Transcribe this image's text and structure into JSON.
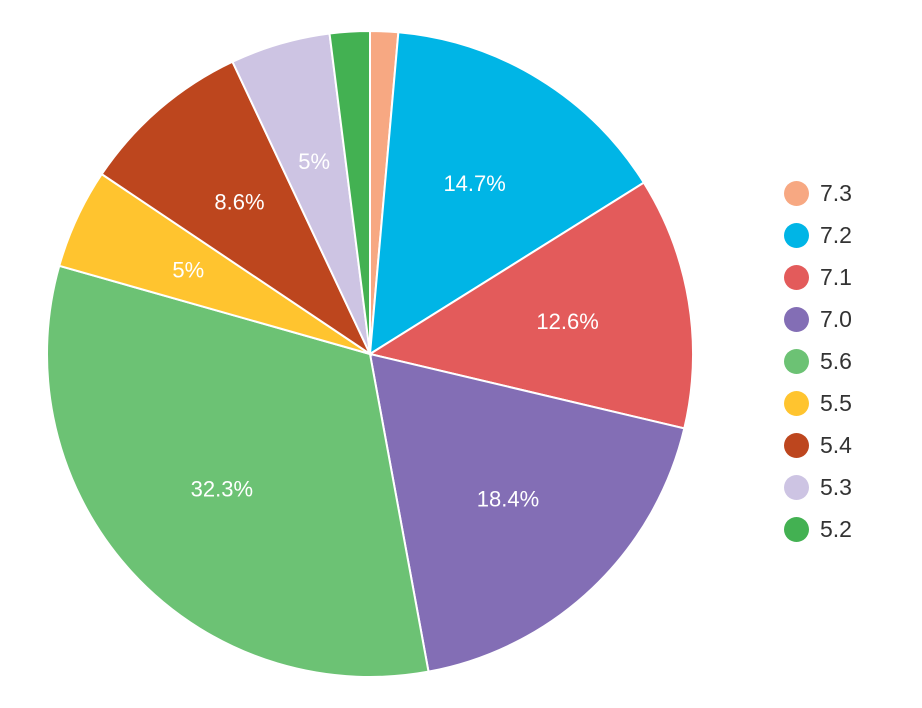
{
  "chart_data": {
    "type": "pie",
    "series": [
      {
        "name": "7.3",
        "value": 1.4,
        "label": "",
        "color": "#F7A882"
      },
      {
        "name": "7.2",
        "value": 14.7,
        "label": "14.7%",
        "color": "#00B5E6"
      },
      {
        "name": "7.1",
        "value": 12.6,
        "label": "12.6%",
        "color": "#E35B5B"
      },
      {
        "name": "7.0",
        "value": 18.4,
        "label": "18.4%",
        "color": "#836EB5"
      },
      {
        "name": "5.6",
        "value": 32.3,
        "label": "32.3%",
        "color": "#6CC274"
      },
      {
        "name": "5.5",
        "value": 5.0,
        "label": "5%",
        "color": "#FFC42F"
      },
      {
        "name": "5.4",
        "value": 8.6,
        "label": "8.6%",
        "color": "#BD461E"
      },
      {
        "name": "5.3",
        "value": 5.0,
        "label": "5%",
        "color": "#CDC4E3"
      },
      {
        "name": "5.2",
        "value": 2.0,
        "label": "",
        "color": "#43B152"
      }
    ],
    "legend_position": "right",
    "start_angle": "top, clockwise"
  }
}
